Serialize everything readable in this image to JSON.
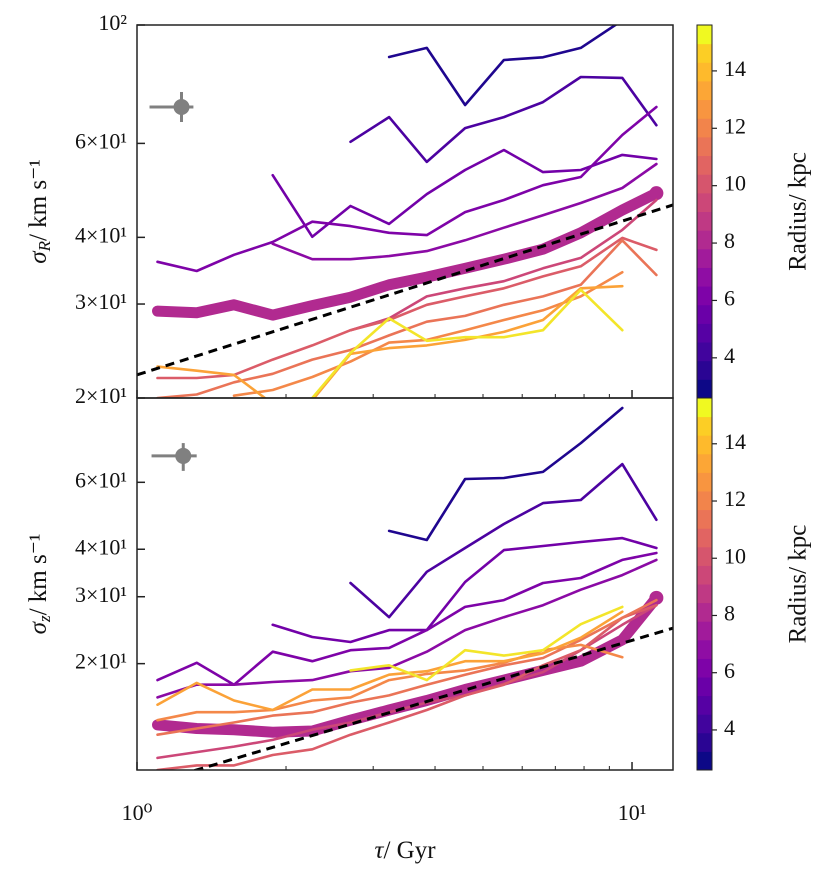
{
  "chart_data": [
    {
      "type": "line",
      "xscale": "log",
      "yscale": "log",
      "ylabel": {
        "symbol": "σ",
        "sub": "R",
        "unit": "/ km s⁻¹"
      },
      "x": [
        1.1,
        1.32,
        1.57,
        1.88,
        2.26,
        2.7,
        3.23,
        3.85,
        4.6,
        5.51,
        6.61,
        7.88,
        9.56,
        11.2
      ],
      "xlim": [
        1,
        12.1
      ],
      "xticks": [
        1,
        10
      ],
      "show_xtick_labels": false,
      "xticks_minor": [
        2,
        3,
        4,
        5,
        6,
        7,
        8,
        9
      ],
      "ylim": [
        20,
        100
      ],
      "yticks": [
        {
          "value": 20,
          "label": "2×10¹"
        },
        {
          "value": 30,
          "label": "3×10¹"
        },
        {
          "value": 40,
          "label": "4×10¹"
        },
        {
          "value": 60,
          "label": "6×10¹"
        },
        {
          "value": 100,
          "label": "10²"
        }
      ],
      "series": [
        {
          "color": "#1f068f",
          "values": [
            null,
            null,
            null,
            null,
            null,
            null,
            87.1,
            90.6,
            70.8,
            86,
            87,
            90.6,
            102,
            null
          ]
        },
        {
          "color": "#4c02a1",
          "values": [
            null,
            null,
            null,
            null,
            null,
            60.4,
            67.2,
            55.4,
            64.1,
            67.2,
            71.7,
            79.9,
            79.6,
            64.9
          ]
        },
        {
          "color": "#7201a8",
          "values": [
            null,
            null,
            null,
            52.3,
            40.1,
            45.8,
            42.4,
            48.2,
            53.5,
            58.3,
            53.0,
            53.5,
            57.1,
            56.1
          ]
        },
        {
          "color": "#7e03a8",
          "values": [
            36.0,
            34.6,
            37.1,
            39.2,
            42.8,
            42.0,
            40.8,
            40.4,
            44.6,
            47.0,
            50.1,
            51.9,
            62.2,
            70.2
          ]
        },
        {
          "color": "#8b0aa5",
          "values": [
            null,
            null,
            null,
            38.9,
            36.4,
            36.4,
            36.9,
            37.7,
            39.5,
            41.7,
            44.0,
            46.4,
            49.5,
            54.9
          ]
        },
        {
          "color": "#b12a90",
          "highlight": true,
          "values": [
            29.1,
            28.9,
            29.9,
            28.6,
            29.8,
            30.9,
            32.6,
            33.7,
            35.0,
            36.4,
            38.0,
            40.8,
            45.0,
            48.4
          ]
        },
        {
          "color": "#cc4778",
          "values": [
            null,
            null,
            null,
            null,
            null,
            26.8,
            28.2,
            31.0,
            32.1,
            33.1,
            35.0,
            36.6,
            41.3,
            47.0
          ]
        },
        {
          "color": "#db5c68",
          "values": [
            21.8,
            21.8,
            22.1,
            23.6,
            25.1,
            26.8,
            28.0,
            29.9,
            31.0,
            32.1,
            33.8,
            35.3,
            39.9,
            37.9
          ]
        },
        {
          "color": "#ea7457",
          "values": [
            20.0,
            20.3,
            21.4,
            22.2,
            23.6,
            24.6,
            26.2,
            27.8,
            28.5,
            29.9,
            31.0,
            32.6,
            39.5,
            34.0
          ]
        },
        {
          "color": "#f48849",
          "values": [
            null,
            null,
            20.2,
            20.7,
            21.9,
            23.4,
            25.4,
            25.7,
            26.8,
            28.0,
            29.2,
            31.0,
            34.4,
            null
          ]
        },
        {
          "color": "#fba238",
          "values": [
            22.9,
            22.5,
            22.1,
            19.5,
            19.8,
            24.2,
            24.8,
            25.1,
            25.7,
            26.6,
            28.0,
            32.1,
            32.4,
            null
          ]
        },
        {
          "color": "#f3e52a",
          "values": [
            null,
            null,
            null,
            null,
            20.0,
            24.3,
            28.2,
            25.6,
            26.0,
            26.0,
            26.8,
            31.9,
            26.8,
            null
          ]
        }
      ],
      "reference_line": {
        "x": [
          1,
          12.1
        ],
        "values": [
          22.1,
          46.0
        ]
      },
      "error_marker": {
        "x": 1.23,
        "y": 70.2,
        "x_range": [
          1.06,
          1.3
        ],
        "y_range": [
          65.8,
          74.9
        ]
      },
      "colorbar": {
        "label": "Radius/ kpc",
        "lim": [
          2.6,
          15.6
        ],
        "ticks": [
          4,
          6,
          8,
          10,
          12,
          14
        ],
        "colors": [
          "#0d0887",
          "#2a0593",
          "#41049d",
          "#5601a4",
          "#6a00a8",
          "#7e03a8",
          "#8f0da4",
          "#a11b9b",
          "#b12a90",
          "#bf3984",
          "#cc4778",
          "#d6556d",
          "#e16462",
          "#ea7457",
          "#f2844b",
          "#f89540",
          "#fca636",
          "#feba2c",
          "#fcce25",
          "#f0f921"
        ]
      }
    },
    {
      "type": "line",
      "xscale": "log",
      "yscale": "log",
      "ylabel": {
        "symbol": "σ",
        "sub": "z",
        "unit": "/ km s⁻¹"
      },
      "xlabel": {
        "symbol": "τ",
        "unit": "/ Gyr"
      },
      "x": [
        1.1,
        1.32,
        1.57,
        1.88,
        2.26,
        2.7,
        3.23,
        3.85,
        4.6,
        5.51,
        6.61,
        7.88,
        9.56,
        11.2
      ],
      "xlim": [
        1,
        12.1
      ],
      "xticks": [
        {
          "value": 1,
          "label": "10⁰"
        },
        {
          "value": 10,
          "label": "10¹"
        }
      ],
      "show_xtick_labels": true,
      "xticks_minor": [
        2,
        3,
        4,
        5,
        6,
        7,
        8,
        9
      ],
      "ylim": [
        10.5,
        100
      ],
      "yticks": [
        {
          "value": 20,
          "label": "2×10¹"
        },
        {
          "value": 30,
          "label": "3×10¹"
        },
        {
          "value": 40,
          "label": "4×10¹"
        },
        {
          "value": 60,
          "label": "6×10¹"
        }
      ],
      "series": [
        {
          "color": "#1f068f",
          "values": [
            null,
            null,
            null,
            null,
            null,
            null,
            44.7,
            42.3,
            61.2,
            61.6,
            63.9,
            76.1,
            94.1,
            null
          ]
        },
        {
          "color": "#4c02a1",
          "values": [
            null,
            null,
            null,
            null,
            null,
            32.6,
            26.5,
            34.9,
            40.3,
            46.6,
            52.9,
            53.9,
            67.0,
            47.8
          ]
        },
        {
          "color": "#7201a8",
          "values": [
            null,
            null,
            null,
            25.3,
            23.5,
            22.8,
            24.5,
            24.5,
            32.8,
            39.8,
            40.8,
            41.8,
            42.8,
            40.3
          ]
        },
        {
          "color": "#7e03a8",
          "values": [
            18.1,
            20.1,
            17.6,
            21.5,
            20.3,
            21.7,
            22.0,
            24.5,
            28.2,
            29.4,
            32.6,
            33.6,
            37.5,
            39.1
          ]
        },
        {
          "color": "#8b0aa5",
          "values": [
            16.3,
            17.6,
            17.6,
            17.9,
            18.1,
            19.1,
            19.5,
            21.5,
            24.5,
            26.5,
            28.5,
            31.3,
            34.2,
            37.5
          ]
        },
        {
          "color": "#b12a90",
          "highlight": true,
          "values": [
            13.8,
            13.5,
            13.4,
            13.2,
            13.3,
            14.2,
            15.1,
            16.0,
            17.1,
            18.1,
            19.2,
            20.3,
            23.1,
            29.8
          ]
        },
        {
          "color": "#cc4778",
          "values": [
            11.3,
            11.7,
            12.1,
            12.6,
            13.4,
            14.0,
            14.9,
            15.8,
            16.5,
            17.7,
            19.0,
            21.7,
            25.3,
            28.5
          ]
        },
        {
          "color": "#db5c68",
          "values": [
            10.5,
            10.8,
            10.8,
            11.5,
            11.9,
            13.0,
            14.0,
            15.1,
            16.5,
            17.6,
            19.8,
            21.7,
            26.4,
            28.5
          ]
        },
        {
          "color": "#ea7457",
          "values": [
            13.0,
            13.5,
            14.0,
            14.6,
            14.9,
            15.8,
            16.5,
            17.6,
            18.7,
            19.8,
            20.7,
            23.1,
            26.4,
            29.4
          ]
        },
        {
          "color": "#f48849",
          "values": [
            14.2,
            14.9,
            14.9,
            15.1,
            16.0,
            16.3,
            18.1,
            18.8,
            19.2,
            20.1,
            21.7,
            22.4,
            20.8,
            null
          ]
        },
        {
          "color": "#fba238",
          "values": [
            15.6,
            17.8,
            16.0,
            15.1,
            17.1,
            17.1,
            18.7,
            19.1,
            20.3,
            20.3,
            21.3,
            23.4,
            27.4,
            null
          ]
        },
        {
          "color": "#f3e52a",
          "values": [
            null,
            null,
            null,
            null,
            null,
            19.2,
            19.8,
            18.1,
            21.7,
            21.0,
            21.7,
            25.4,
            28.2,
            null
          ]
        }
      ],
      "reference_line": {
        "x": [
          1,
          12.1
        ],
        "values": [
          9.43,
          24.8
        ]
      },
      "error_marker": {
        "x": 1.24,
        "y": 70.4,
        "x_range": [
          1.07,
          1.32
        ],
        "y_range": [
          64.3,
          76.1
        ]
      },
      "colorbar": {
        "label": "Radius/ kpc",
        "lim": [
          2.6,
          15.6
        ],
        "ticks": [
          4,
          6,
          8,
          10,
          12,
          14
        ],
        "colors": [
          "#0d0887",
          "#2a0593",
          "#41049d",
          "#5601a4",
          "#6a00a8",
          "#7e03a8",
          "#8f0da4",
          "#a11b9b",
          "#b12a90",
          "#bf3984",
          "#cc4778",
          "#d6556d",
          "#e16462",
          "#ea7457",
          "#f2844b",
          "#f89540",
          "#fca636",
          "#feba2c",
          "#fcce25",
          "#f0f921"
        ]
      }
    }
  ]
}
